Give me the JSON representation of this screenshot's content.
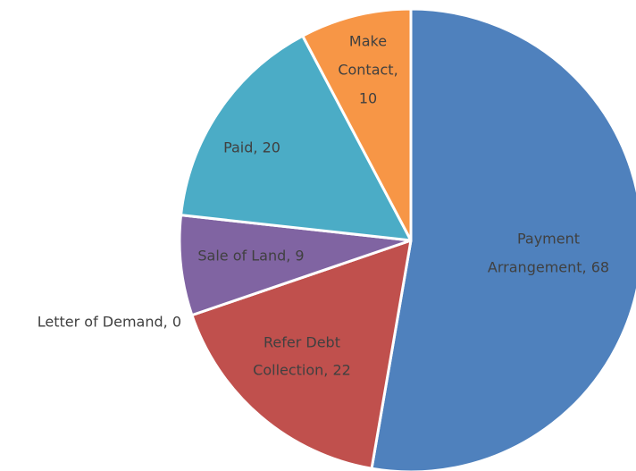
{
  "chart_data": {
    "type": "pie",
    "values": [
      68,
      22,
      0,
      9,
      20,
      10
    ],
    "value_labels": [
      [
        "Payment",
        "Arrangement, 68"
      ],
      [
        "Refer Debt",
        "Collection, 22"
      ],
      [
        "Letter of Demand, 0"
      ],
      [
        "Sale of Land, 9"
      ],
      [
        "Paid, 20"
      ],
      [
        "Make",
        "Contact,",
        "10"
      ]
    ],
    "colors": [
      "#4f81bd",
      "#c0504d",
      "#9bbb59",
      "#8064a2",
      "#4bacc6",
      "#f79646"
    ]
  }
}
